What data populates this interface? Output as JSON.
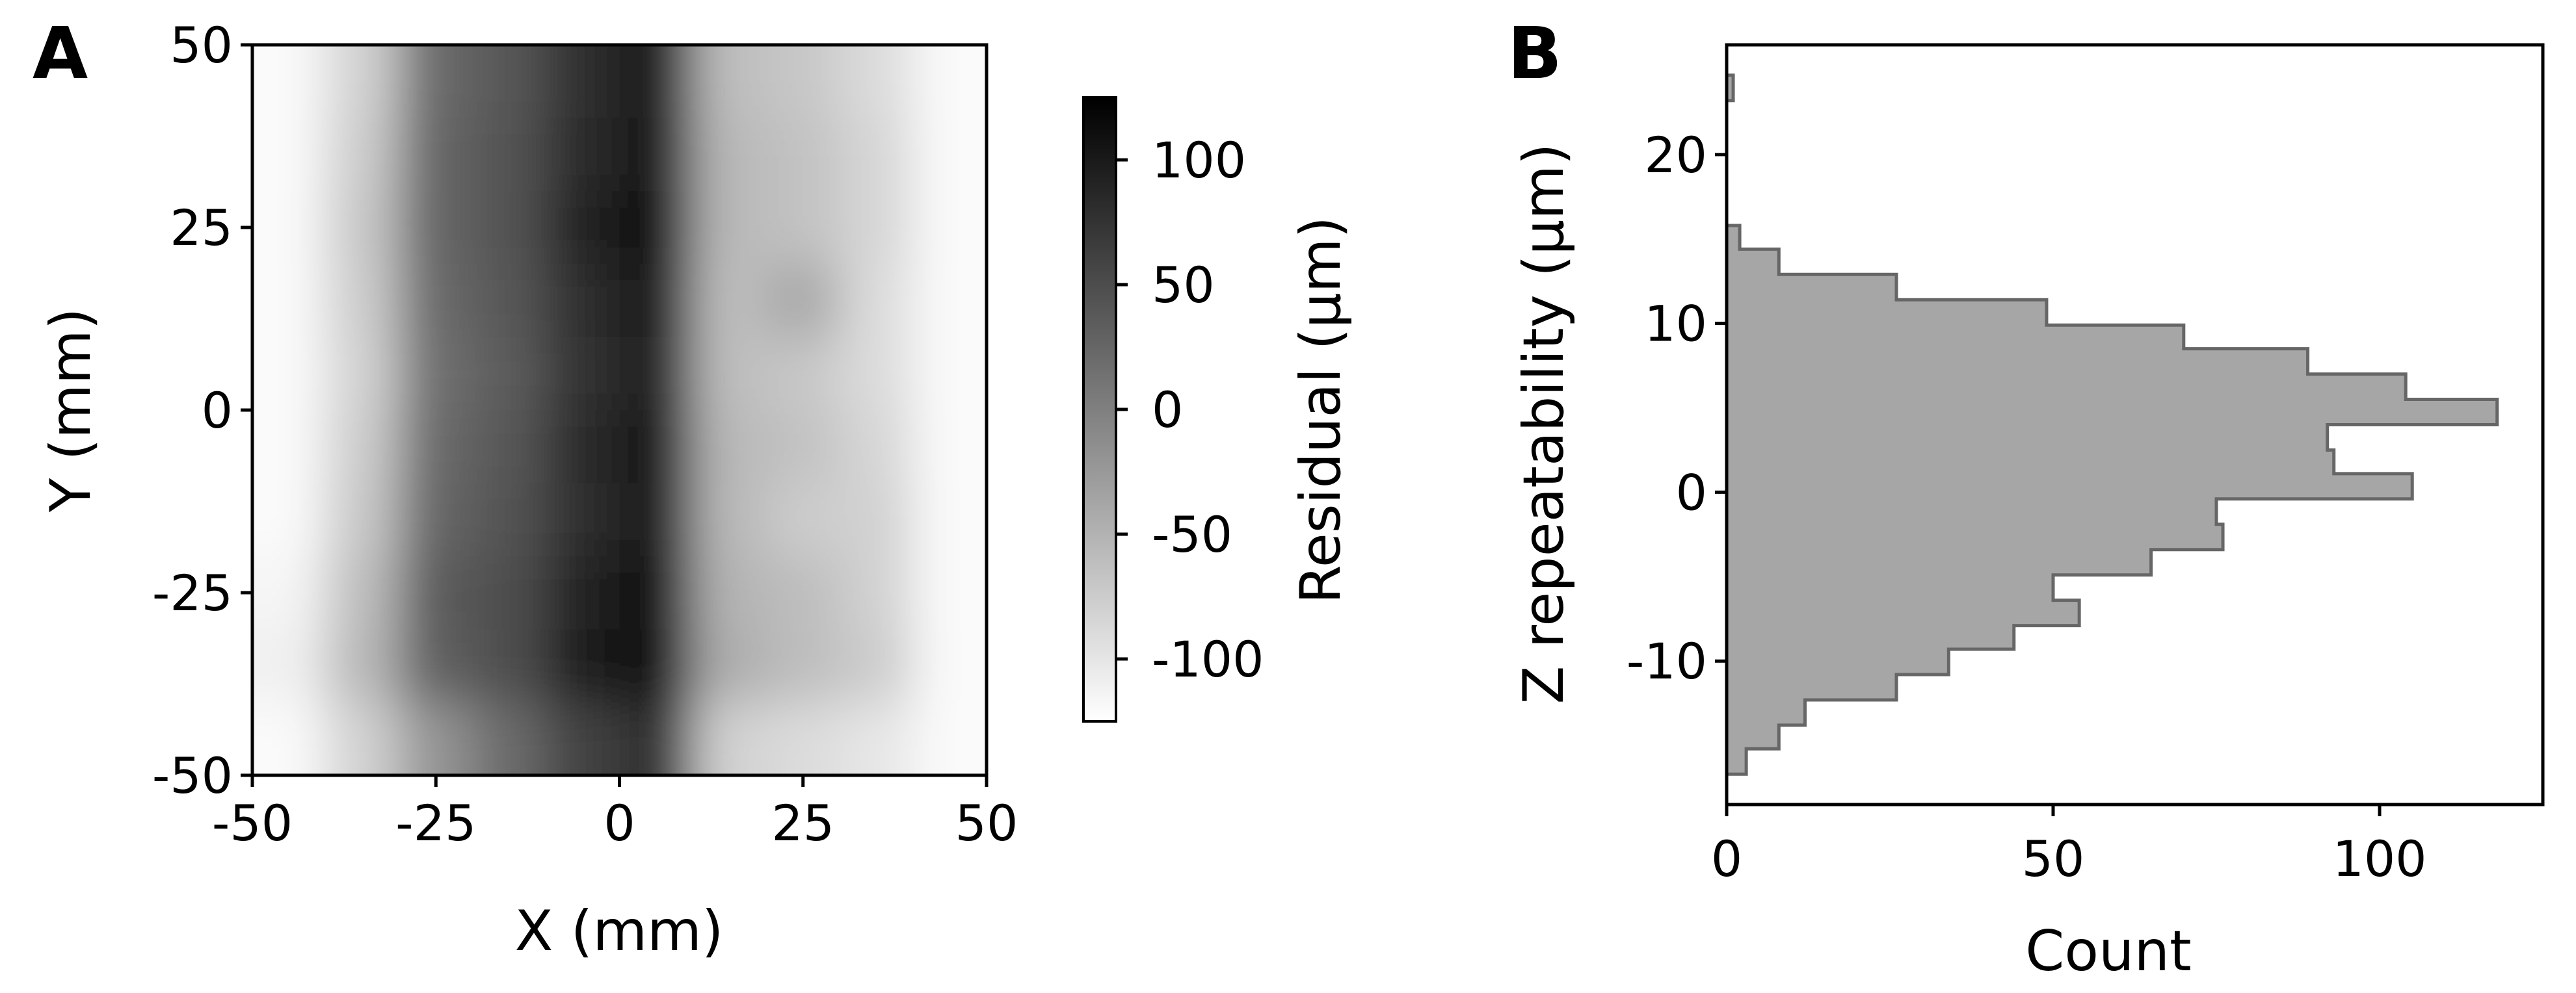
{
  "panels": {
    "a": "A",
    "b": "B"
  },
  "chart_data": [
    {
      "type": "heatmap",
      "xlabel": "X (mm)",
      "ylabel": "Y (mm)",
      "xlim": [
        -50,
        50
      ],
      "ylim": [
        -50,
        50
      ],
      "xticks": [
        "-50",
        "-25",
        "0",
        "25",
        "50"
      ],
      "yticks": [
        "-50",
        "-25",
        "0",
        "25",
        "50"
      ],
      "colorbar": {
        "label": "Residual (µm)",
        "range": [
          -125,
          125
        ],
        "ticks": [
          "-100",
          "-50",
          "0",
          "50",
          "100"
        ],
        "colormap": "grey (white = low, black = high)"
      },
      "x": [
        -45,
        -35,
        -25,
        -15,
        -5,
        5,
        15,
        25,
        35,
        45
      ],
      "y": [
        45,
        35,
        25,
        15,
        5,
        -5,
        -15,
        -25,
        -35,
        -45
      ],
      "values": [
        [
          -120,
          -80,
          20,
          40,
          80,
          100,
          -60,
          -70,
          -90,
          -120
        ],
        [
          -120,
          -75,
          25,
          45,
          85,
          105,
          -55,
          -65,
          -85,
          -120
        ],
        [
          -120,
          -70,
          25,
          45,
          90,
          110,
          -55,
          -65,
          -85,
          -120
        ],
        [
          -120,
          -75,
          20,
          40,
          80,
          100,
          -60,
          -40,
          -90,
          -120
        ],
        [
          -120,
          -80,
          15,
          35,
          75,
          95,
          -60,
          -70,
          -90,
          -120
        ],
        [
          -120,
          -75,
          20,
          40,
          85,
          105,
          -55,
          -65,
          -85,
          -120
        ],
        [
          -120,
          -70,
          25,
          45,
          80,
          100,
          -55,
          -75,
          -80,
          -120
        ],
        [
          -115,
          -60,
          35,
          50,
          90,
          110,
          -50,
          -60,
          -80,
          -120
        ],
        [
          -110,
          -55,
          30,
          50,
          95,
          115,
          -45,
          -60,
          -75,
          -120
        ],
        [
          -120,
          -80,
          -20,
          20,
          60,
          80,
          -80,
          -90,
          -100,
          -120
        ]
      ]
    },
    {
      "type": "bar",
      "orientation": "horizontal",
      "style": "step-histogram",
      "xlabel": "Count",
      "ylabel": "Z repeatability (µm)",
      "xlim": [
        0,
        125
      ],
      "ylim": [
        -18.5,
        26.5
      ],
      "xticks": [
        "0",
        "50",
        "100"
      ],
      "yticks": [
        "-10",
        "0",
        "10",
        "20"
      ],
      "bin_edges": [
        -16.7,
        -15.2,
        -13.8,
        -12.3,
        -10.8,
        -9.3,
        -7.9,
        -6.4,
        -4.9,
        -3.4,
        -1.9,
        -0.4,
        1.1,
        2.5,
        4.0,
        5.5,
        7.0,
        8.5,
        9.9,
        11.4,
        12.9,
        14.4,
        15.8,
        17.3,
        18.8,
        20.3,
        21.8,
        23.2,
        24.7
      ],
      "counts": [
        3,
        8,
        12,
        26,
        34,
        44,
        54,
        50,
        65,
        76,
        75,
        105,
        93,
        92,
        118,
        104,
        89,
        70,
        49,
        26,
        8,
        2,
        0,
        0,
        0,
        0,
        0,
        1
      ],
      "fill_color": "#a6a6a6",
      "edge_color": "#666666"
    }
  ]
}
